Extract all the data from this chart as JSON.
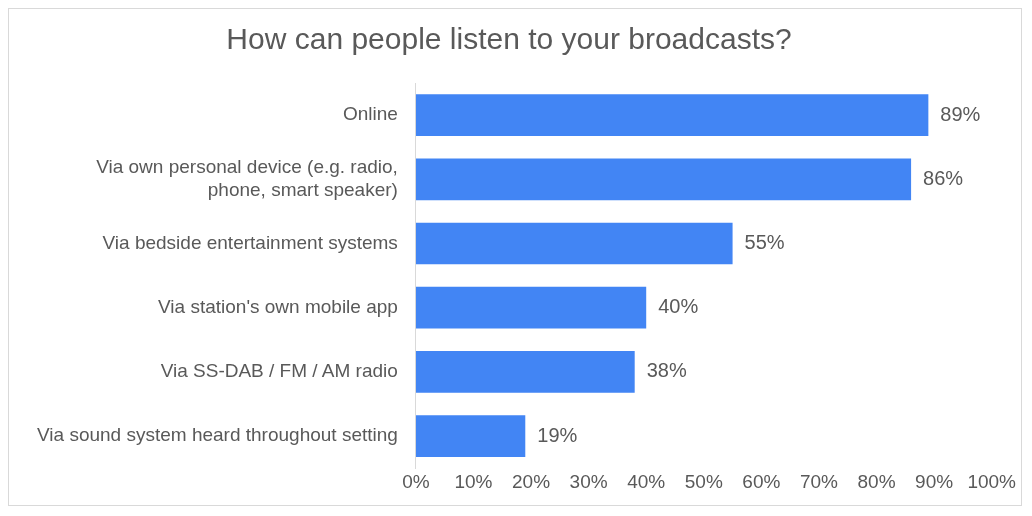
{
  "chart_data": {
    "type": "bar",
    "orientation": "horizontal",
    "title": "How can people listen to your broadcasts?",
    "categories": [
      "Online",
      "Via own personal device (e.g. radio, phone, smart speaker)",
      "Via bedside entertainment systems",
      "Via station's own mobile app",
      "Via SS-DAB / FM / AM radio",
      "Via sound system heard throughout setting"
    ],
    "values": [
      89,
      86,
      55,
      40,
      38,
      19
    ],
    "value_labels": [
      "89%",
      "86%",
      "55%",
      "40%",
      "38%",
      "19%"
    ],
    "color": "#4285f4",
    "xlim": [
      0,
      100
    ],
    "xticks": [
      {
        "value": 0,
        "label": "0%"
      },
      {
        "value": 10,
        "label": "10%"
      },
      {
        "value": 20,
        "label": "20%"
      },
      {
        "value": 30,
        "label": "30%"
      },
      {
        "value": 40,
        "label": "40%"
      },
      {
        "value": 50,
        "label": "50%"
      },
      {
        "value": 60,
        "label": "60%"
      },
      {
        "value": 70,
        "label": "70%"
      },
      {
        "value": 80,
        "label": "80%"
      },
      {
        "value": 90,
        "label": "90%"
      },
      {
        "value": 100,
        "label": "100%"
      }
    ],
    "grid": false,
    "legend": false
  }
}
